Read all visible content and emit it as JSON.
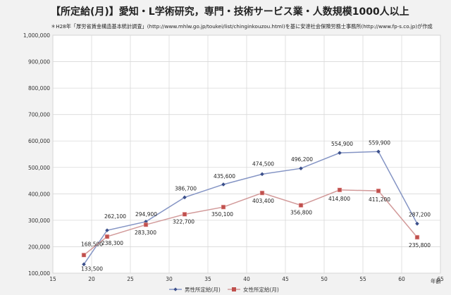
{
  "chart_data": {
    "type": "line",
    "title": "【所定給(月)】愛知・L学術研究，専門・技術サービス業・人数規模1000人以上",
    "subtitle": "＊H28年「厚労省賃金構造基本統計調査」(http://www.mhlw.go.jp/toukei/list/chinginkouzou.html)を基に安達社会保険労務士事務所(http://www.fp-s.co.jp)が作成",
    "xlabel": "年齢",
    "ylabel": "",
    "xlim": [
      15,
      65
    ],
    "ylim": [
      100000,
      1000000
    ],
    "x_ticks": [
      15,
      20,
      25,
      30,
      35,
      40,
      45,
      50,
      55,
      60,
      65
    ],
    "y_ticks": [
      100000,
      200000,
      300000,
      400000,
      500000,
      600000,
      700000,
      800000,
      900000,
      1000000
    ],
    "y_tick_labels": [
      "100,000",
      "200,000",
      "300,000",
      "400,000",
      "500,000",
      "600,000",
      "700,000",
      "800,000",
      "900,000",
      "1,000,000"
    ],
    "grid": true,
    "legend_position": "bottom",
    "series": [
      {
        "name": "男性所定給(月)",
        "color": "#8494c4",
        "marker": "diamond",
        "marker_color": "#3b4f8a",
        "x": [
          19,
          22,
          27,
          32,
          37,
          42,
          47,
          52,
          57,
          62
        ],
        "values": [
          133500,
          262100,
          294900,
          386700,
          435600,
          474500,
          496200,
          554900,
          559900,
          287200
        ],
        "labels": [
          "133,500",
          "262,100",
          "294,900",
          "386,700",
          "435,600",
          "474,500",
          "496,200",
          "554,900",
          "559,900",
          "287,200"
        ]
      },
      {
        "name": "女性所定給(月)",
        "color": "#d29a9a",
        "marker": "square",
        "marker_color": "#c0504d",
        "x": [
          19,
          22,
          27,
          32,
          37,
          42,
          47,
          52,
          57,
          62
        ],
        "values": [
          168500,
          238300,
          283300,
          322700,
          350100,
          403400,
          356800,
          414800,
          411200,
          235800
        ],
        "labels": [
          "168,500",
          "238,300",
          "283,300",
          "322,700",
          "350,100",
          "403,400",
          "356,800",
          "414,800",
          "411,200",
          "235,800"
        ]
      }
    ]
  }
}
